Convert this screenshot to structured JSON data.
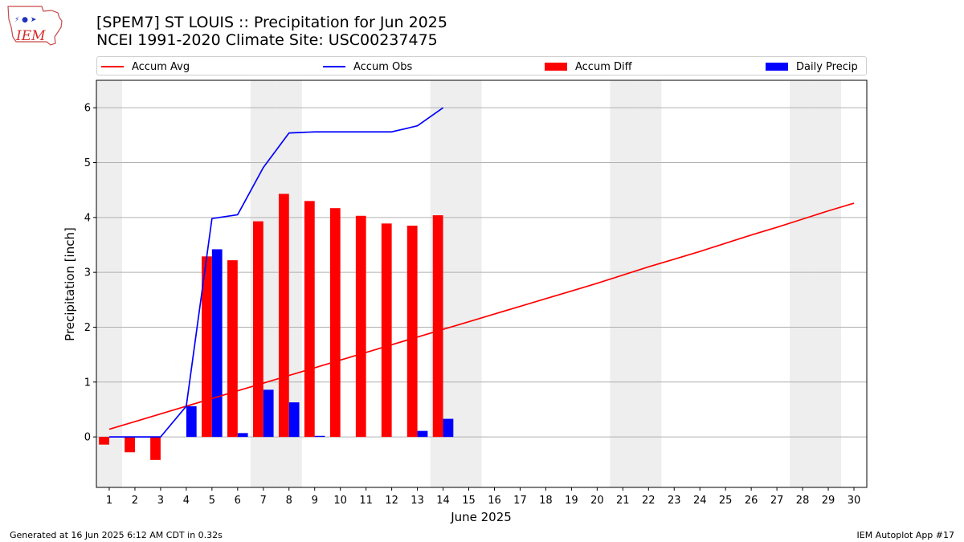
{
  "header": {
    "title_line1": "[SPEM7] ST LOUIS :: Precipitation for Jun 2025",
    "title_line2": "NCEI 1991-2020 Climate Site: USC00237475"
  },
  "logo": {
    "text": "IEM"
  },
  "legend": {
    "accum_avg": "Accum Avg",
    "accum_obs": "Accum Obs",
    "accum_diff": "Accum Diff",
    "daily_precip": "Daily Precip"
  },
  "footer": {
    "left": "Generated at 16 Jun 2025 6:12 AM CDT in 0.32s",
    "right": "IEM Autoplot App #17"
  },
  "colors": {
    "avg": "#ff0000",
    "obs": "#0000ff",
    "diff": "#ff0000",
    "daily": "#0000ff",
    "weekend_shade": "#eeeeee",
    "grid": "#b0b0b0"
  },
  "chart_data": {
    "type": "bar",
    "xlabel": "June 2025",
    "ylabel": "Precipitation [inch]",
    "xlim": [
      0.5,
      30.5
    ],
    "ylim": [
      -0.92,
      6.5
    ],
    "x_ticks": [
      1,
      2,
      3,
      4,
      5,
      6,
      7,
      8,
      9,
      10,
      11,
      12,
      13,
      14,
      15,
      16,
      17,
      18,
      19,
      20,
      21,
      22,
      23,
      24,
      25,
      26,
      27,
      28,
      29,
      30
    ],
    "y_ticks": [
      0,
      1,
      2,
      3,
      4,
      5,
      6
    ],
    "grid": "horizontal",
    "legend_placement": "top, above plot",
    "weekend_days": [
      1,
      7,
      8,
      14,
      15,
      21,
      22,
      28,
      29
    ],
    "series": [
      {
        "name": "Accum Avg",
        "type": "line",
        "x": [
          1,
          2,
          3,
          4,
          5,
          6,
          7,
          8,
          9,
          10,
          11,
          12,
          13,
          14,
          15,
          16,
          17,
          18,
          19,
          20,
          21,
          22,
          23,
          24,
          25,
          26,
          27,
          28,
          29,
          30
        ],
        "values": [
          0.14,
          0.28,
          0.42,
          0.56,
          0.7,
          0.84,
          0.98,
          1.12,
          1.26,
          1.4,
          1.54,
          1.68,
          1.82,
          1.96,
          2.1,
          2.24,
          2.38,
          2.52,
          2.66,
          2.8,
          2.95,
          3.1,
          3.24,
          3.38,
          3.53,
          3.68,
          3.82,
          3.97,
          4.12,
          4.26
        ]
      },
      {
        "name": "Accum Obs",
        "type": "line",
        "x": [
          1,
          2,
          3,
          4,
          5,
          6,
          7,
          8,
          9,
          10,
          11,
          12,
          13,
          14
        ],
        "values": [
          0.0,
          0.0,
          0.0,
          0.56,
          3.98,
          4.05,
          4.91,
          5.54,
          5.56,
          5.56,
          5.56,
          5.56,
          5.67,
          6.0
        ]
      },
      {
        "name": "Accum Diff",
        "type": "bar",
        "x": [
          1,
          2,
          3,
          4,
          5,
          6,
          7,
          8,
          9,
          10,
          11,
          12,
          13,
          14
        ],
        "values": [
          -0.14,
          -0.28,
          -0.42,
          0.0,
          3.29,
          3.22,
          3.93,
          4.43,
          4.3,
          4.17,
          4.03,
          3.89,
          3.85,
          4.04
        ]
      },
      {
        "name": "Daily Precip",
        "type": "bar",
        "x": [
          1,
          2,
          3,
          4,
          5,
          6,
          7,
          8,
          9,
          10,
          11,
          12,
          13,
          14
        ],
        "values": [
          0.0,
          0.0,
          0.0,
          0.56,
          3.42,
          0.07,
          0.86,
          0.63,
          0.02,
          0.0,
          0.0,
          0.0,
          0.11,
          0.33
        ]
      }
    ]
  }
}
